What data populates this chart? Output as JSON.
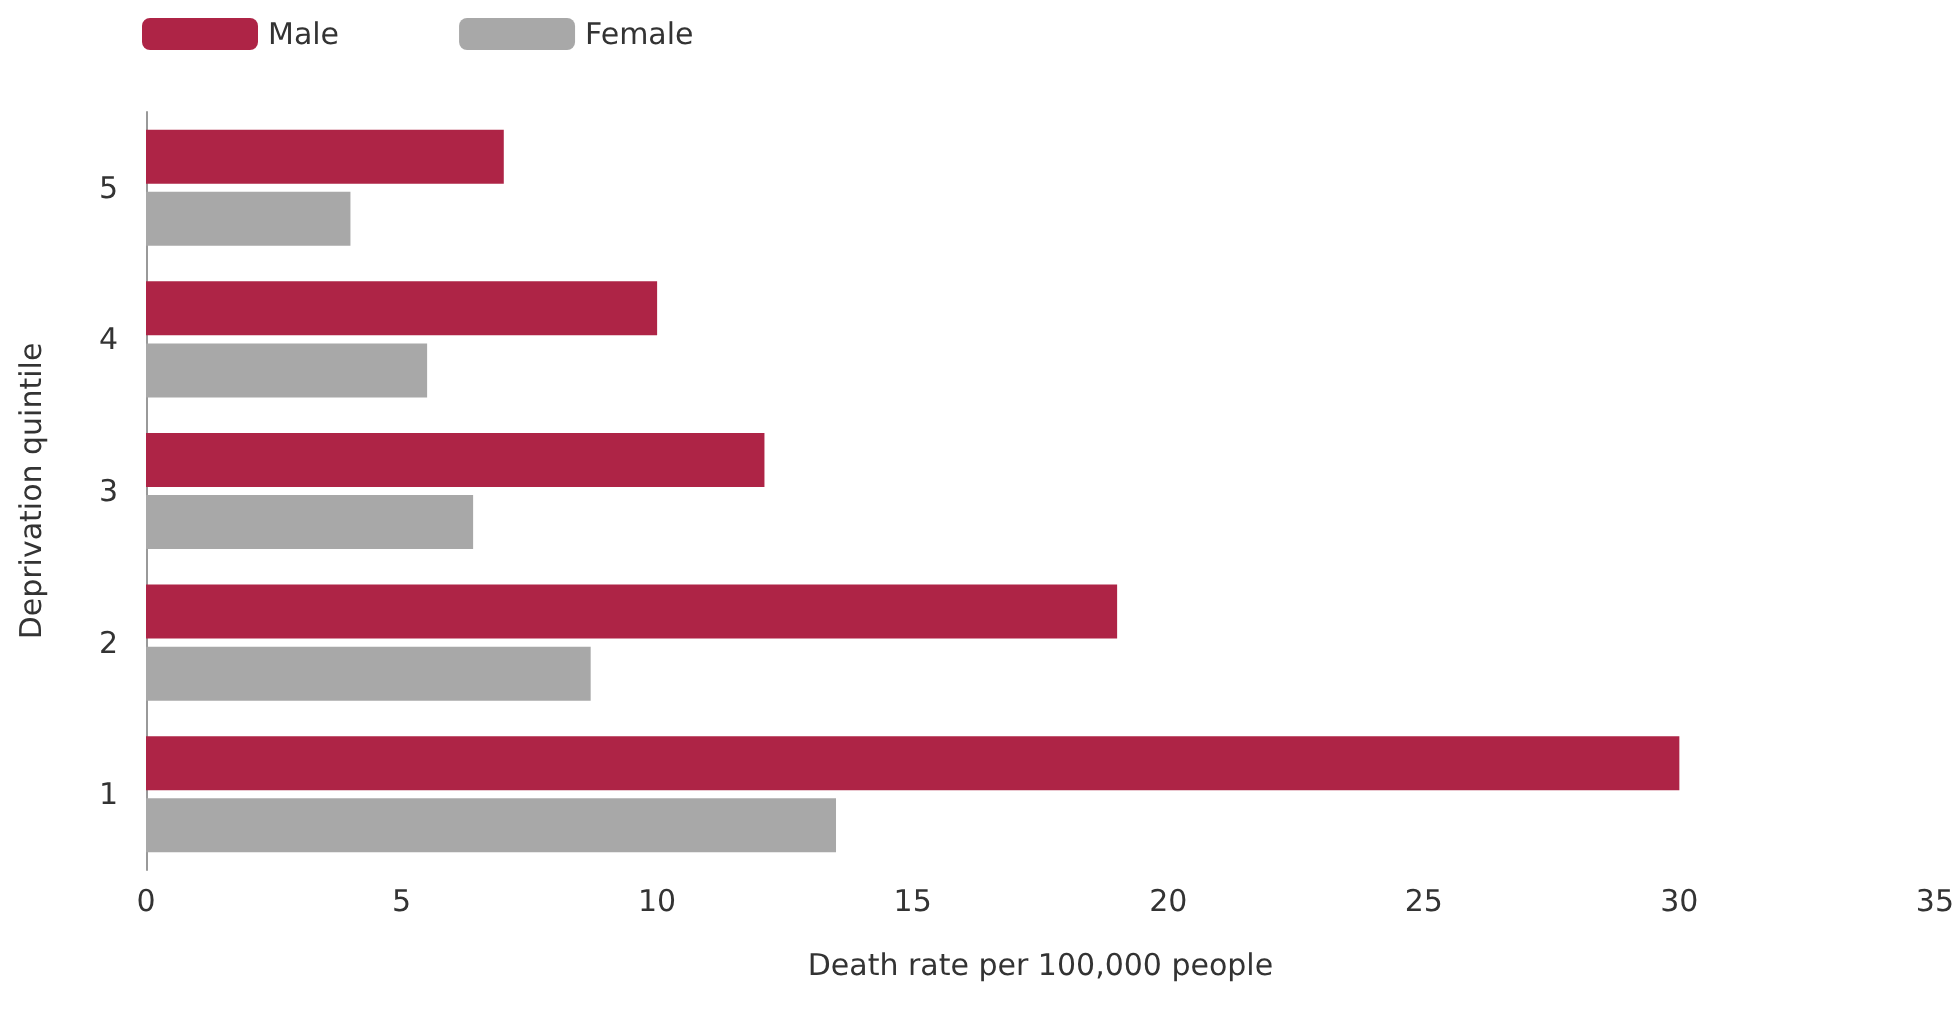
{
  "chart_data": {
    "type": "bar",
    "orientation": "horizontal",
    "xlabel": "Death rate per 100,000 people",
    "ylabel": "Deprivation quintile",
    "categories": [
      "5",
      "4",
      "3",
      "2",
      "1"
    ],
    "series": [
      {
        "name": "Male",
        "color": "#ae2446",
        "values": [
          7,
          10,
          12.1,
          19,
          30
        ]
      },
      {
        "name": "Female",
        "color": "#a8a8a8",
        "values": [
          4,
          5.5,
          6.4,
          8.7,
          13.5
        ]
      }
    ],
    "xlim": [
      0,
      35
    ],
    "xticks": [
      0,
      5,
      10,
      15,
      20,
      25,
      30,
      35
    ],
    "grid": false,
    "legend": "top left"
  }
}
